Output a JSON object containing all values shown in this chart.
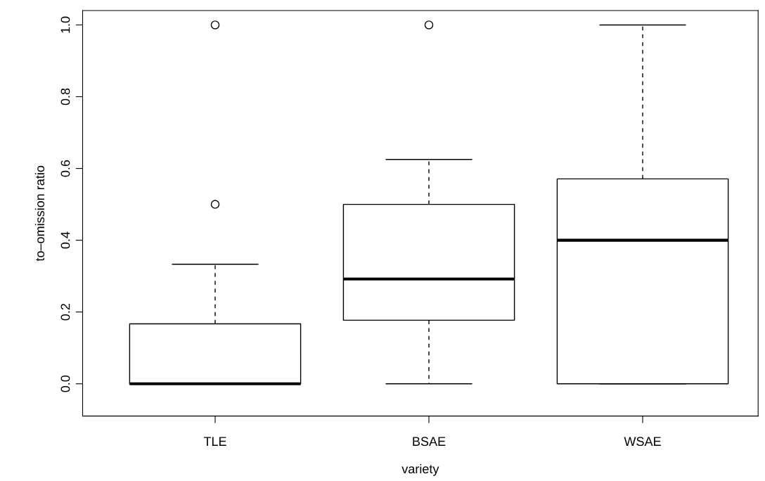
{
  "chart_data": {
    "type": "box",
    "xlabel": "variety",
    "ylabel": "to–omission ratio",
    "categories": [
      "TLE",
      "BSAE",
      "WSAE"
    ],
    "boxes": [
      {
        "low": 0,
        "q1": 0,
        "median": 0,
        "q3": 0.167,
        "high": 0.333,
        "outliers": [
          0.5,
          1.0
        ]
      },
      {
        "low": 0,
        "q1": 0.177,
        "median": 0.292,
        "q3": 0.5,
        "high": 0.625,
        "outliers": [
          1.0
        ]
      },
      {
        "low": 0,
        "q1": 0,
        "median": 0.4,
        "q3": 0.571,
        "high": 1.0
      }
    ],
    "ylim": [
      -0.09,
      1.04
    ],
    "yticks": [
      {
        "value": 0,
        "label": "0.0"
      },
      {
        "value": 0.2,
        "label": "0.2"
      },
      {
        "value": 0.4,
        "label": "0.4"
      },
      {
        "value": 0.6,
        "label": "0.6"
      },
      {
        "value": 0.8,
        "label": "0.8"
      },
      {
        "value": 1.0,
        "label": "1.0"
      }
    ],
    "grid": false
  }
}
